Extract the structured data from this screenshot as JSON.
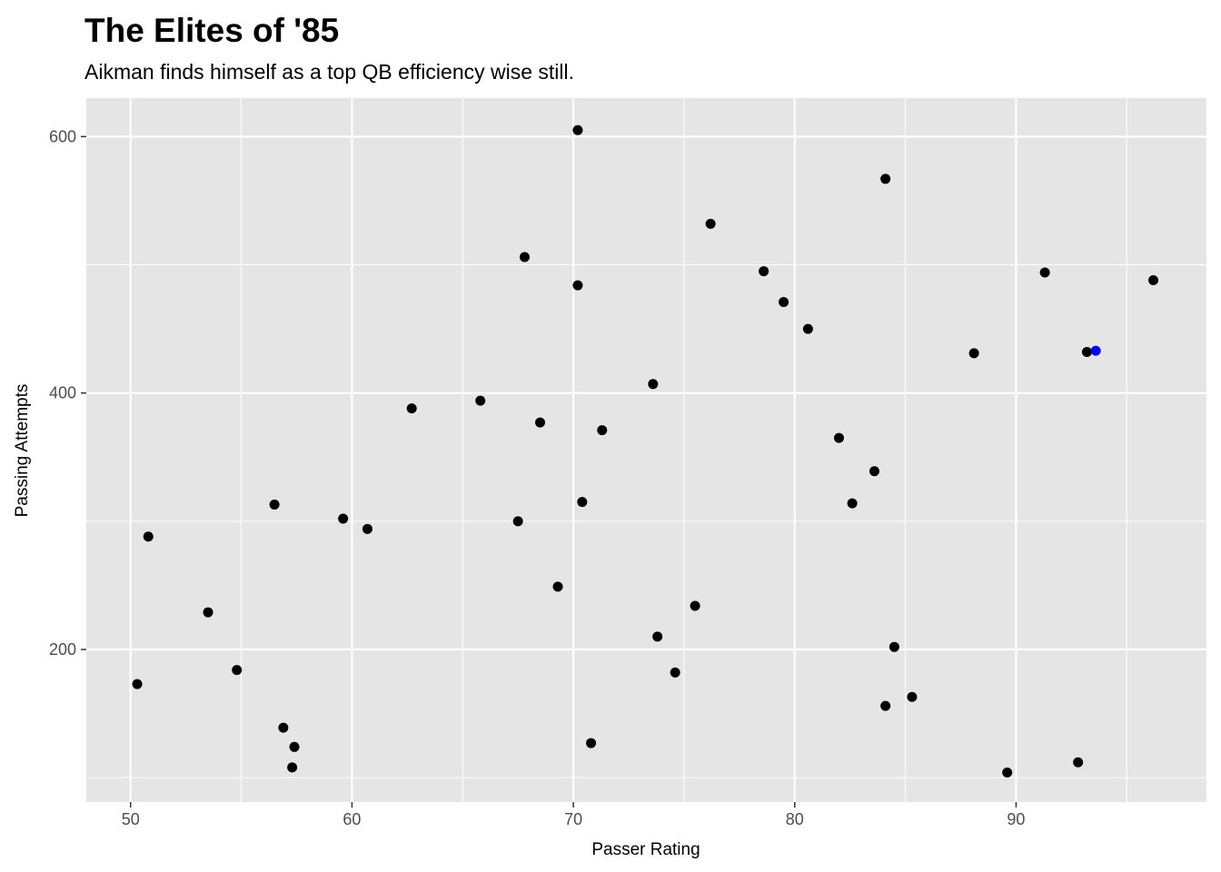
{
  "chart_data": {
    "type": "scatter",
    "title": "The Elites of '85",
    "subtitle": "Aikman finds himself as a top QB efficiency wise still.",
    "xlabel": "Passer Rating",
    "ylabel": "Passing Attempts",
    "xlim": [
      48,
      98.6
    ],
    "ylim": [
      81,
      630
    ],
    "x_ticks": [
      50,
      60,
      70,
      80,
      90
    ],
    "y_ticks": [
      200,
      400,
      600
    ],
    "grid": true,
    "colors": {
      "panel": "#e5e5e5",
      "grid": "#ffffff",
      "point": "#000000",
      "highlight": "#0000ff",
      "tick": "#333333"
    },
    "points": [
      {
        "x": 70.2,
        "y": 605,
        "highlight": false
      },
      {
        "x": 84.1,
        "y": 567,
        "highlight": false
      },
      {
        "x": 76.2,
        "y": 532,
        "highlight": false
      },
      {
        "x": 67.8,
        "y": 506,
        "highlight": false
      },
      {
        "x": 78.6,
        "y": 495,
        "highlight": false
      },
      {
        "x": 91.3,
        "y": 494,
        "highlight": false
      },
      {
        "x": 96.2,
        "y": 488,
        "highlight": false
      },
      {
        "x": 70.2,
        "y": 484,
        "highlight": false
      },
      {
        "x": 79.5,
        "y": 471,
        "highlight": false
      },
      {
        "x": 80.6,
        "y": 450,
        "highlight": false
      },
      {
        "x": 88.1,
        "y": 431,
        "highlight": false
      },
      {
        "x": 93.2,
        "y": 432,
        "highlight": false
      },
      {
        "x": 93.6,
        "y": 433,
        "highlight": true
      },
      {
        "x": 73.6,
        "y": 407,
        "highlight": false
      },
      {
        "x": 65.8,
        "y": 394,
        "highlight": false
      },
      {
        "x": 62.7,
        "y": 388,
        "highlight": false
      },
      {
        "x": 68.5,
        "y": 377,
        "highlight": false
      },
      {
        "x": 71.3,
        "y": 371,
        "highlight": false
      },
      {
        "x": 82.0,
        "y": 365,
        "highlight": false
      },
      {
        "x": 83.6,
        "y": 339,
        "highlight": false
      },
      {
        "x": 56.5,
        "y": 313,
        "highlight": false
      },
      {
        "x": 70.4,
        "y": 315,
        "highlight": false
      },
      {
        "x": 82.6,
        "y": 314,
        "highlight": false
      },
      {
        "x": 59.6,
        "y": 302,
        "highlight": false
      },
      {
        "x": 67.5,
        "y": 300,
        "highlight": false
      },
      {
        "x": 60.7,
        "y": 294,
        "highlight": false
      },
      {
        "x": 50.8,
        "y": 288,
        "highlight": false
      },
      {
        "x": 69.3,
        "y": 249,
        "highlight": false
      },
      {
        "x": 75.5,
        "y": 234,
        "highlight": false
      },
      {
        "x": 53.5,
        "y": 229,
        "highlight": false
      },
      {
        "x": 73.8,
        "y": 210,
        "highlight": false
      },
      {
        "x": 84.5,
        "y": 202,
        "highlight": false
      },
      {
        "x": 54.8,
        "y": 184,
        "highlight": false
      },
      {
        "x": 74.6,
        "y": 182,
        "highlight": false
      },
      {
        "x": 50.3,
        "y": 173,
        "highlight": false
      },
      {
        "x": 85.3,
        "y": 163,
        "highlight": false
      },
      {
        "x": 84.1,
        "y": 156,
        "highlight": false
      },
      {
        "x": 56.9,
        "y": 139,
        "highlight": false
      },
      {
        "x": 57.4,
        "y": 124,
        "highlight": false
      },
      {
        "x": 70.8,
        "y": 127,
        "highlight": false
      },
      {
        "x": 92.8,
        "y": 112,
        "highlight": false
      },
      {
        "x": 57.3,
        "y": 108,
        "highlight": false
      },
      {
        "x": 89.6,
        "y": 104,
        "highlight": false
      }
    ]
  }
}
